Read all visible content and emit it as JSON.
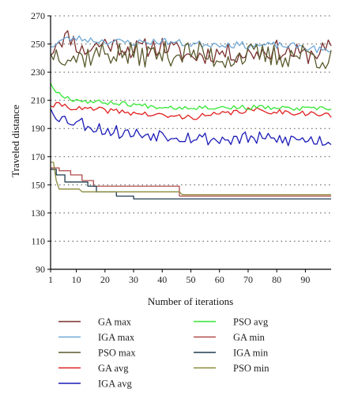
{
  "chart_data": {
    "type": "line",
    "title": "",
    "xlabel": "Number of iterations",
    "ylabel": "Traveled distance",
    "xlim": [
      1,
      99
    ],
    "ylim": [
      90,
      270
    ],
    "xticks": [
      1,
      10,
      20,
      30,
      40,
      50,
      60,
      70,
      80,
      90
    ],
    "yticks": [
      90,
      110,
      130,
      150,
      170,
      190,
      210,
      230,
      250,
      270
    ],
    "grid": "horizontal dotted",
    "legend_placement": "bottom",
    "series": [
      {
        "name": "GA max",
        "color": "#7b2f2f",
        "style": "noisy",
        "anchors": [
          [
            1,
            242
          ],
          [
            3,
            253
          ],
          [
            8,
            255
          ],
          [
            12,
            245
          ],
          [
            20,
            251
          ],
          [
            30,
            246
          ],
          [
            40,
            249
          ],
          [
            50,
            241
          ],
          [
            60,
            244
          ],
          [
            70,
            243
          ],
          [
            80,
            246
          ],
          [
            90,
            242
          ],
          [
            99,
            247
          ]
        ],
        "amp": 7,
        "seed": 11
      },
      {
        "name": "IGA max",
        "color": "#6fa8d6",
        "style": "noisy",
        "anchors": [
          [
            1,
            248
          ],
          [
            5,
            253
          ],
          [
            10,
            254
          ],
          [
            20,
            252
          ],
          [
            30,
            251
          ],
          [
            40,
            252
          ],
          [
            50,
            250
          ],
          [
            60,
            250
          ],
          [
            70,
            249
          ],
          [
            80,
            249
          ],
          [
            90,
            248
          ],
          [
            99,
            244
          ]
        ],
        "amp": 2.5,
        "seed": 23
      },
      {
        "name": "PSO max",
        "color": "#5a5a2e",
        "style": "noisy",
        "anchors": [
          [
            1,
            243
          ],
          [
            5,
            244
          ],
          [
            10,
            240
          ],
          [
            20,
            244
          ],
          [
            30,
            242
          ],
          [
            40,
            243
          ],
          [
            50,
            244
          ],
          [
            60,
            240
          ],
          [
            70,
            242
          ],
          [
            80,
            241
          ],
          [
            90,
            243
          ],
          [
            99,
            239
          ]
        ],
        "amp": 9,
        "seed": 37
      },
      {
        "name": "GA avg",
        "color": "#e02020",
        "style": "noisy",
        "anchors": [
          [
            1,
            206
          ],
          [
            5,
            207
          ],
          [
            10,
            204
          ],
          [
            20,
            203
          ],
          [
            30,
            201
          ],
          [
            40,
            199
          ],
          [
            50,
            198
          ],
          [
            60,
            200
          ],
          [
            70,
            203
          ],
          [
            80,
            202
          ],
          [
            90,
            201
          ],
          [
            99,
            199
          ]
        ],
        "amp": 2,
        "seed": 41
      },
      {
        "name": "IGA avg",
        "color": "#1c1cb8",
        "style": "noisy",
        "anchors": [
          [
            1,
            204
          ],
          [
            5,
            197
          ],
          [
            10,
            195
          ],
          [
            20,
            189
          ],
          [
            30,
            186
          ],
          [
            40,
            186
          ],
          [
            50,
            184
          ],
          [
            60,
            182
          ],
          [
            70,
            183
          ],
          [
            80,
            182
          ],
          [
            90,
            182
          ],
          [
            99,
            181
          ]
        ],
        "amp": 5,
        "seed": 53
      },
      {
        "name": "PSO avg",
        "color": "#33e633",
        "style": "noisy",
        "anchors": [
          [
            1,
            222
          ],
          [
            3,
            216
          ],
          [
            8,
            211
          ],
          [
            15,
            209
          ],
          [
            25,
            208
          ],
          [
            35,
            206
          ],
          [
            45,
            205
          ],
          [
            55,
            205
          ],
          [
            65,
            205
          ],
          [
            75,
            205
          ],
          [
            85,
            204
          ],
          [
            99,
            204
          ]
        ],
        "amp": 1.6,
        "seed": 67
      },
      {
        "name": "GA min",
        "color": "#b04a4a",
        "style": "step",
        "points": [
          [
            1,
            162
          ],
          [
            4,
            162
          ],
          [
            4,
            160
          ],
          [
            8,
            160
          ],
          [
            8,
            157
          ],
          [
            12,
            157
          ],
          [
            12,
            153
          ],
          [
            16,
            153
          ],
          [
            16,
            149
          ],
          [
            46,
            149
          ],
          [
            46,
            142
          ],
          [
            99,
            142
          ]
        ]
      },
      {
        "name": "IGA min",
        "color": "#1f3c4f",
        "style": "step",
        "points": [
          [
            1,
            161
          ],
          [
            3,
            161
          ],
          [
            3,
            157
          ],
          [
            6,
            157
          ],
          [
            6,
            152
          ],
          [
            14,
            152
          ],
          [
            14,
            149
          ],
          [
            17,
            149
          ],
          [
            17,
            145
          ],
          [
            24,
            145
          ],
          [
            24,
            142
          ],
          [
            30,
            142
          ],
          [
            30,
            140
          ],
          [
            99,
            140
          ]
        ]
      },
      {
        "name": "PSO min",
        "color": "#8a8a3a",
        "style": "step",
        "points": [
          [
            1,
            166
          ],
          [
            2,
            166
          ],
          [
            3,
            153
          ],
          [
            4,
            147
          ],
          [
            11,
            147
          ],
          [
            12,
            145
          ],
          [
            46,
            145
          ],
          [
            47,
            143
          ],
          [
            99,
            143
          ]
        ]
      }
    ]
  }
}
